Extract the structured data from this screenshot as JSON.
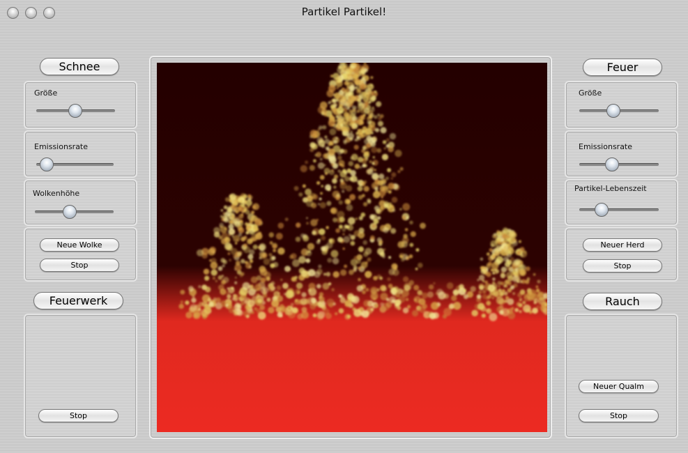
{
  "window": {
    "title": "Partikel Partikel!"
  },
  "left_panel": {
    "snow": {
      "title": "Schnee",
      "sliders": [
        "Größe",
        "Emissionsrate",
        "Wolkenhöhe"
      ],
      "buttons": [
        "Neue Wolke",
        "Stop"
      ]
    },
    "fireworks": {
      "title": "Feuerwerk",
      "buttons": [
        "Stop"
      ]
    }
  },
  "right_panel": {
    "fire": {
      "title": "Feuer",
      "sliders": [
        "Größe",
        "Emissionsrate",
        "Partikel-Lebenszeit"
      ],
      "buttons": [
        "Neuer Herd",
        "Stop"
      ]
    },
    "smoke": {
      "title": "Rauch",
      "buttons": [
        "Neuer Qualm",
        "Stop"
      ]
    }
  }
}
